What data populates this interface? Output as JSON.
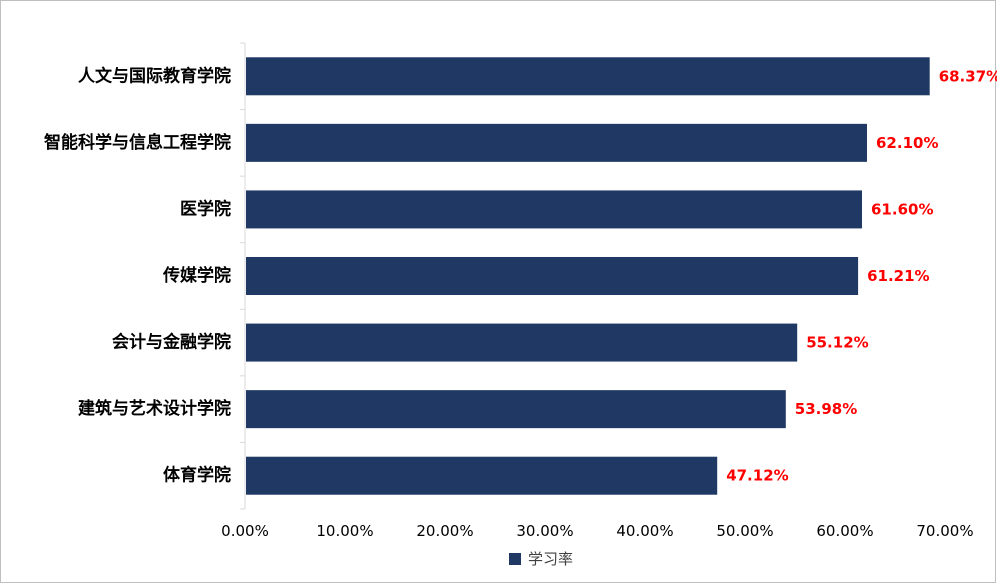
{
  "chart_data": {
    "type": "bar",
    "orientation": "horizontal",
    "categories": [
      "人文与国际教育学院",
      "智能科学与信息工程学院",
      "医学院",
      "传媒学院",
      "会计与金融学院",
      "建筑与艺术设计学院",
      "体育学院"
    ],
    "values": [
      68.37,
      62.1,
      61.6,
      61.21,
      55.12,
      53.98,
      47.12
    ],
    "value_labels": [
      "68.37%",
      "62.10%",
      "61.60%",
      "61.21%",
      "55.12%",
      "53.98%",
      "47.12%"
    ],
    "series": [
      {
        "name": "学习率",
        "values": [
          68.37,
          62.1,
          61.6,
          61.21,
          55.12,
          53.98,
          47.12
        ]
      }
    ],
    "xlim": [
      0,
      70
    ],
    "x_ticks": [
      "0.00%",
      "10.00%",
      "20.00%",
      "30.00%",
      "40.00%",
      "50.00%",
      "60.00%",
      "70.00%"
    ],
    "grid": false,
    "legend_position": "bottom",
    "colors": {
      "bar": "#1f3864",
      "value_label": "#ff0000",
      "axis": "#d9d9d9"
    }
  }
}
